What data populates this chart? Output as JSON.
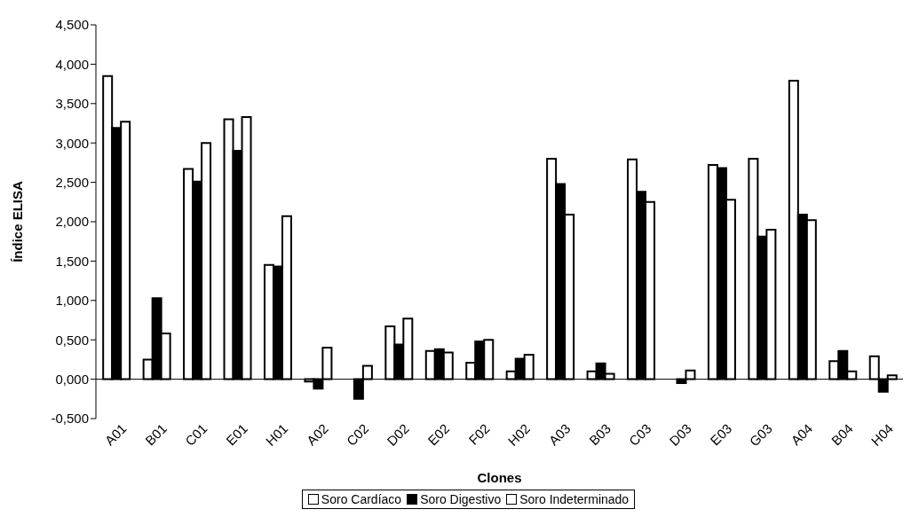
{
  "chart_data": {
    "type": "bar",
    "xlabel": "Clones",
    "ylabel": "Índice ELISA",
    "categories": [
      "A01",
      "B01",
      "C01",
      "E01",
      "H01",
      "A02",
      "C02",
      "D02",
      "E02",
      "F02",
      "H02",
      "A03",
      "B03",
      "C03",
      "D03",
      "E03",
      "G03",
      "A04",
      "B04",
      "H04"
    ],
    "series": [
      {
        "name": "Soro Cardíaco",
        "color": "#ffffff",
        "values": [
          3.85,
          0.25,
          2.67,
          3.3,
          1.45,
          -0.03,
          0,
          0.67,
          0.36,
          0.21,
          0.1,
          2.8,
          0.1,
          2.79,
          0,
          2.72,
          2.8,
          3.79,
          0.23,
          0.29
        ]
      },
      {
        "name": "Soro Digestivo",
        "color": "#000000",
        "values": [
          3.19,
          1.03,
          2.51,
          2.9,
          1.43,
          -0.12,
          -0.25,
          0.44,
          0.38,
          0.48,
          0.26,
          2.48,
          0.2,
          2.38,
          -0.05,
          2.68,
          1.81,
          2.09,
          0.36,
          -0.16
        ]
      },
      {
        "name": "Soro Indeterminado",
        "color": "#ffffff",
        "values": [
          3.27,
          0.58,
          3.0,
          3.33,
          2.07,
          0.4,
          0.17,
          0.77,
          0.34,
          0.5,
          0.31,
          2.09,
          0.07,
          2.25,
          0.11,
          2.28,
          1.9,
          2.02,
          0.1,
          0.05
        ]
      }
    ],
    "ylim": [
      -0.5,
      4.5
    ],
    "yticks": [
      {
        "value": -0.5,
        "label": "-0,500"
      },
      {
        "value": 0,
        "label": "0,000"
      },
      {
        "value": 0.5,
        "label": "0,500"
      },
      {
        "value": 1,
        "label": "1,000"
      },
      {
        "value": 1.5,
        "label": "1,500"
      },
      {
        "value": 2,
        "label": "2,000"
      },
      {
        "value": 2.5,
        "label": "2,500"
      },
      {
        "value": 3,
        "label": "3,000"
      },
      {
        "value": 3.5,
        "label": "3,500"
      },
      {
        "value": 4,
        "label": "4,000"
      },
      {
        "value": 4.5,
        "label": "4,500"
      }
    ],
    "ref_lines": [
      {
        "axis": "y",
        "value": 0,
        "color": "#000000"
      }
    ],
    "legend": "bottom"
  }
}
